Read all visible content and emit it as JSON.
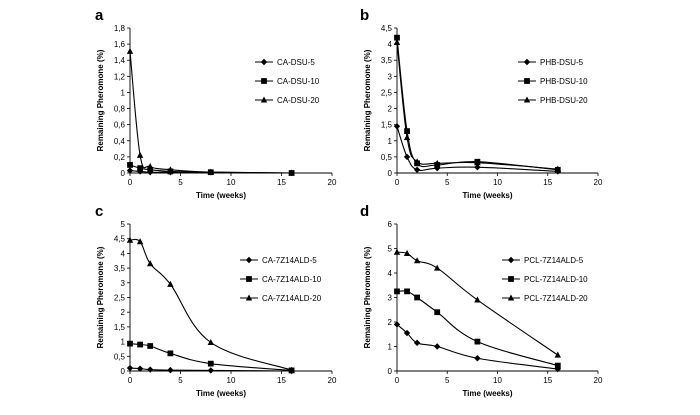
{
  "chart_data": [
    {
      "panel_label": "a",
      "type": "line",
      "xlabel": "Time (weeks)",
      "ylabel": "Remaining Pheromone (%)",
      "xlim": [
        0,
        20
      ],
      "xticks": [
        0,
        5,
        10,
        15,
        20
      ],
      "ylim": [
        0,
        1.8
      ],
      "yticks": [
        "0",
        "0,2",
        "0,4",
        "0,6",
        "0,8",
        "1",
        "1,2",
        "1,4",
        "1,6",
        "1,8"
      ],
      "legend_position": "right",
      "series": [
        {
          "name": "CA-DSU-5",
          "marker": "diamond",
          "x": [
            0,
            1,
            2,
            4,
            8,
            16
          ],
          "y": [
            0.03,
            0.02,
            0.01,
            0.01,
            0.01,
            0.0
          ]
        },
        {
          "name": "CA-DSU-10",
          "marker": "square",
          "x": [
            0,
            1,
            2,
            4,
            8,
            16
          ],
          "y": [
            0.1,
            0.06,
            0.04,
            0.02,
            0.01,
            0.0
          ]
        },
        {
          "name": "CA-DSU-20",
          "marker": "triangle",
          "x": [
            0,
            1,
            2,
            4,
            8,
            16
          ],
          "y": [
            1.51,
            0.22,
            0.08,
            0.04,
            0.01,
            0.0
          ]
        }
      ]
    },
    {
      "panel_label": "b",
      "type": "line",
      "xlabel": "Time (weeks)",
      "ylabel": "Remaining Pheromone (%)",
      "xlim": [
        0,
        20
      ],
      "xticks": [
        0,
        5,
        10,
        15,
        20
      ],
      "ylim": [
        0,
        4.5
      ],
      "yticks": [
        "0",
        "0,5",
        "1",
        "1,5",
        "2",
        "2,5",
        "3",
        "3,5",
        "4",
        "4,5"
      ],
      "legend_position": "right",
      "series": [
        {
          "name": "PHB-DSU-5",
          "marker": "diamond",
          "x": [
            0,
            1,
            2,
            4,
            8,
            16
          ],
          "y": [
            1.45,
            0.5,
            0.1,
            0.15,
            0.18,
            0.05
          ]
        },
        {
          "name": "PHB-DSU-10",
          "marker": "square",
          "x": [
            0,
            1,
            2,
            4,
            8,
            16
          ],
          "y": [
            4.2,
            1.3,
            0.3,
            0.25,
            0.35,
            0.1
          ]
        },
        {
          "name": "PHB-DSU-20",
          "marker": "triangle",
          "x": [
            0,
            1,
            2,
            4,
            8,
            16
          ],
          "y": [
            4.05,
            1.1,
            0.35,
            0.3,
            0.32,
            0.12
          ]
        }
      ]
    },
    {
      "panel_label": "c",
      "type": "line",
      "xlabel": "Time (weeks)",
      "ylabel": "Remaining Pheromone (%)",
      "xlim": [
        0,
        20
      ],
      "xticks": [
        0,
        5,
        10,
        15,
        20
      ],
      "ylim": [
        0,
        5
      ],
      "yticks": [
        "0",
        "0,5",
        "1",
        "1,5",
        "2",
        "2,5",
        "3",
        "3,5",
        "4",
        "4,5",
        "5"
      ],
      "legend_position": "right",
      "series": [
        {
          "name": "CA-7Z14ALD-5",
          "marker": "diamond",
          "x": [
            0,
            1,
            2,
            4,
            8,
            16
          ],
          "y": [
            0.1,
            0.08,
            0.05,
            0.03,
            0.02,
            0.0
          ]
        },
        {
          "name": "CA-7Z14ALD-10",
          "marker": "square",
          "x": [
            0,
            1,
            2,
            4,
            8,
            16
          ],
          "y": [
            0.93,
            0.9,
            0.85,
            0.6,
            0.25,
            0.02
          ]
        },
        {
          "name": "CA-7Z14ALD-20",
          "marker": "triangle",
          "x": [
            0,
            1,
            2,
            4,
            8,
            16
          ],
          "y": [
            4.45,
            4.4,
            3.65,
            2.95,
            0.97,
            0.03
          ]
        }
      ]
    },
    {
      "panel_label": "d",
      "type": "line",
      "xlabel": "Time (weeks)",
      "ylabel": "Remaining Pheromone (%)",
      "xlim": [
        0,
        20
      ],
      "xticks": [
        0,
        5,
        10,
        15,
        20
      ],
      "ylim": [
        0,
        6
      ],
      "yticks": [
        "0",
        "1",
        "2",
        "3",
        "4",
        "5",
        "6"
      ],
      "legend_position": "right",
      "series": [
        {
          "name": "PCL-7Z14ALD-5",
          "marker": "diamond",
          "x": [
            0,
            1,
            2,
            4,
            8,
            16
          ],
          "y": [
            1.9,
            1.55,
            1.15,
            1.0,
            0.52,
            0.08
          ]
        },
        {
          "name": "PCL-7Z14ALD-10",
          "marker": "square",
          "x": [
            0,
            1,
            2,
            4,
            8,
            16
          ],
          "y": [
            3.25,
            3.25,
            3.0,
            2.4,
            1.2,
            0.22
          ]
        },
        {
          "name": "PCL-7Z14ALD-20",
          "marker": "triangle",
          "x": [
            0,
            1,
            2,
            4,
            8,
            16
          ],
          "y": [
            4.85,
            4.8,
            4.5,
            4.2,
            2.9,
            0.65
          ]
        }
      ]
    }
  ]
}
